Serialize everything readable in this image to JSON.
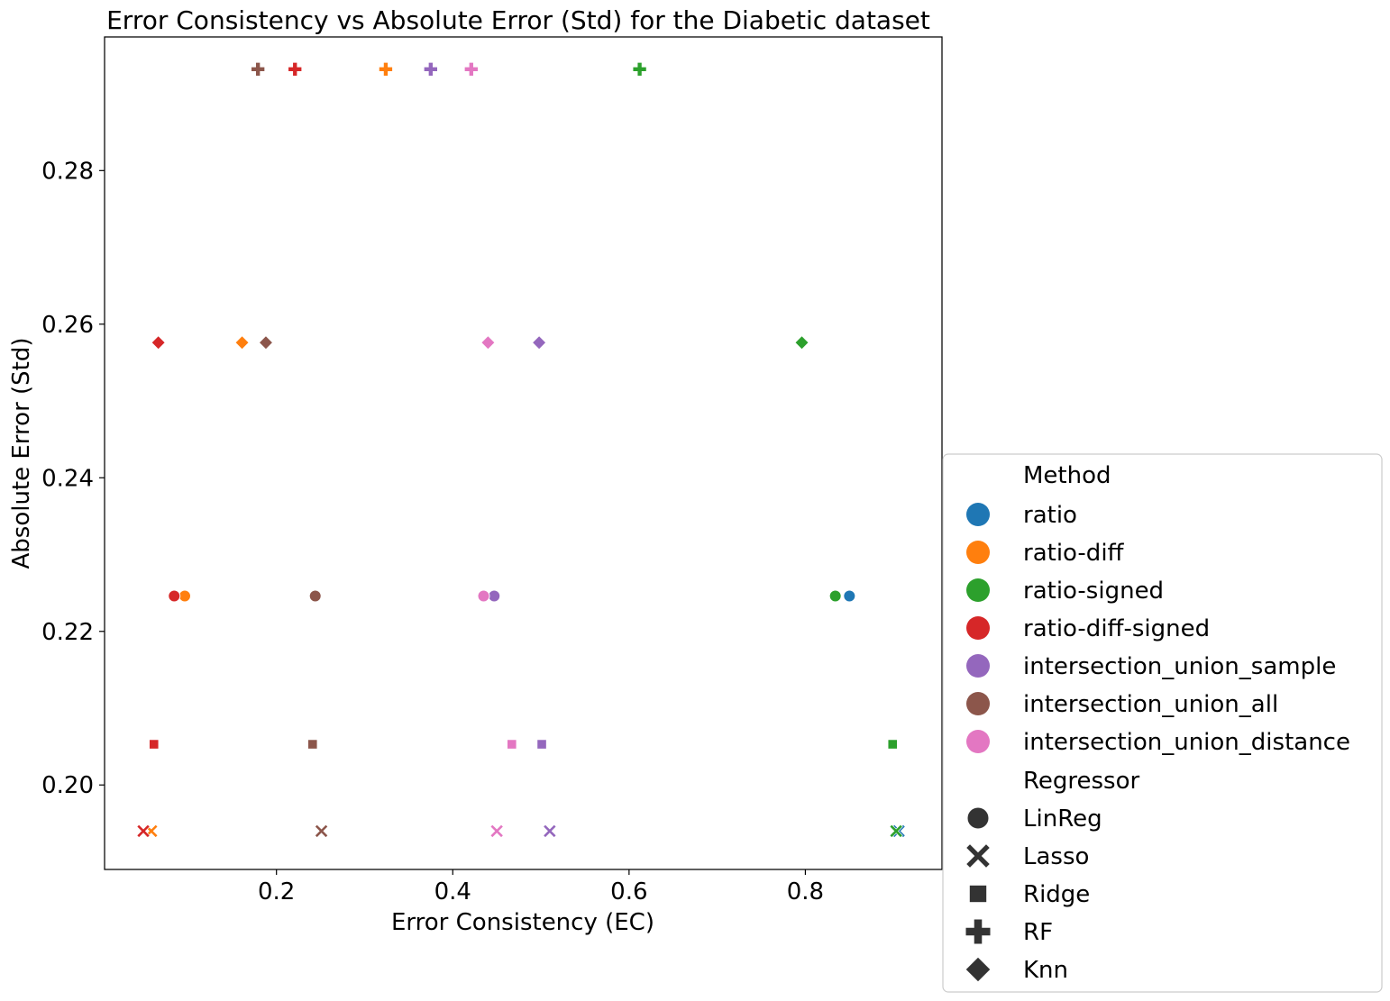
{
  "chart_data": {
    "type": "scatter",
    "title": "Error Consistency vs Absolute Error (Std) for the Diabetic dataset",
    "xlabel": "Error Consistency (EC)",
    "ylabel": "Absolute Error (Std)",
    "xlim": [
      0.005,
      0.955
    ],
    "ylim": [
      0.189,
      0.2974
    ],
    "xticks": [
      0.2,
      0.4,
      0.6,
      0.8
    ],
    "xtick_labels": [
      "0.2",
      "0.4",
      "0.6",
      "0.8"
    ],
    "yticks": [
      0.2,
      0.22,
      0.24,
      0.26,
      0.28
    ],
    "ytick_labels": [
      "0.20",
      "0.22",
      "0.24",
      "0.26",
      "0.28"
    ],
    "grid": false,
    "legend_position": "outside-right-bottom",
    "legend": {
      "hue_title": "Method",
      "style_title": "Regressor",
      "methods": [
        {
          "name": "ratio",
          "color": "#1f77b4"
        },
        {
          "name": "ratio-diff",
          "color": "#ff7f0e"
        },
        {
          "name": "ratio-signed",
          "color": "#2ca02c"
        },
        {
          "name": "ratio-diff-signed",
          "color": "#d62728"
        },
        {
          "name": "intersection_union_sample",
          "color": "#9467bd"
        },
        {
          "name": "intersection_union_all",
          "color": "#8c564b"
        },
        {
          "name": "intersection_union_distance",
          "color": "#e377c2"
        }
      ],
      "regressors": [
        {
          "name": "LinReg",
          "marker": "circle"
        },
        {
          "name": "Lasso",
          "marker": "x"
        },
        {
          "name": "Ridge",
          "marker": "square"
        },
        {
          "name": "RF",
          "marker": "plus"
        },
        {
          "name": "Knn",
          "marker": "diamond"
        }
      ]
    },
    "points": [
      {
        "method": "ratio",
        "regressor": "LinReg",
        "x": 0.85,
        "y": 0.2246
      },
      {
        "method": "ratio-signed",
        "regressor": "LinReg",
        "x": 0.834,
        "y": 0.2246
      },
      {
        "method": "ratio-diff",
        "regressor": "LinReg",
        "x": 0.096,
        "y": 0.2246
      },
      {
        "method": "ratio-diff-signed",
        "regressor": "LinReg",
        "x": 0.084,
        "y": 0.2246
      },
      {
        "method": "intersection_union_all",
        "regressor": "LinReg",
        "x": 0.244,
        "y": 0.2246
      },
      {
        "method": "intersection_union_sample",
        "regressor": "LinReg",
        "x": 0.447,
        "y": 0.2246
      },
      {
        "method": "intersection_union_distance",
        "regressor": "LinReg",
        "x": 0.435,
        "y": 0.2246
      },
      {
        "method": "ratio",
        "regressor": "Lasso",
        "x": 0.906,
        "y": 0.194
      },
      {
        "method": "ratio-signed",
        "regressor": "Lasso",
        "x": 0.903,
        "y": 0.194
      },
      {
        "method": "ratio-diff",
        "regressor": "Lasso",
        "x": 0.058,
        "y": 0.194
      },
      {
        "method": "ratio-diff-signed",
        "regressor": "Lasso",
        "x": 0.049,
        "y": 0.194
      },
      {
        "method": "intersection_union_all",
        "regressor": "Lasso",
        "x": 0.251,
        "y": 0.194
      },
      {
        "method": "intersection_union_sample",
        "regressor": "Lasso",
        "x": 0.51,
        "y": 0.194
      },
      {
        "method": "intersection_union_distance",
        "regressor": "Lasso",
        "x": 0.45,
        "y": 0.194
      },
      {
        "method": "ratio-signed",
        "regressor": "Ridge",
        "x": 0.899,
        "y": 0.2053
      },
      {
        "method": "ratio-diff-signed",
        "regressor": "Ridge",
        "x": 0.061,
        "y": 0.2053
      },
      {
        "method": "intersection_union_all",
        "regressor": "Ridge",
        "x": 0.241,
        "y": 0.2053
      },
      {
        "method": "intersection_union_sample",
        "regressor": "Ridge",
        "x": 0.501,
        "y": 0.2053
      },
      {
        "method": "intersection_union_distance",
        "regressor": "Ridge",
        "x": 0.467,
        "y": 0.2053
      },
      {
        "method": "ratio-signed",
        "regressor": "RF",
        "x": 0.612,
        "y": 0.2932
      },
      {
        "method": "ratio-diff",
        "regressor": "RF",
        "x": 0.324,
        "y": 0.2932
      },
      {
        "method": "ratio-diff-signed",
        "regressor": "RF",
        "x": 0.221,
        "y": 0.2932
      },
      {
        "method": "intersection_union_all",
        "regressor": "RF",
        "x": 0.179,
        "y": 0.2932
      },
      {
        "method": "intersection_union_sample",
        "regressor": "RF",
        "x": 0.375,
        "y": 0.2932
      },
      {
        "method": "intersection_union_distance",
        "regressor": "RF",
        "x": 0.421,
        "y": 0.2932
      },
      {
        "method": "ratio-signed",
        "regressor": "Knn",
        "x": 0.796,
        "y": 0.2576
      },
      {
        "method": "ratio-diff",
        "regressor": "Knn",
        "x": 0.161,
        "y": 0.2576
      },
      {
        "method": "ratio-diff-signed",
        "regressor": "Knn",
        "x": 0.066,
        "y": 0.2576
      },
      {
        "method": "intersection_union_all",
        "regressor": "Knn",
        "x": 0.188,
        "y": 0.2576
      },
      {
        "method": "intersection_union_sample",
        "regressor": "Knn",
        "x": 0.498,
        "y": 0.2576
      },
      {
        "method": "intersection_union_distance",
        "regressor": "Knn",
        "x": 0.44,
        "y": 0.2576
      }
    ]
  }
}
